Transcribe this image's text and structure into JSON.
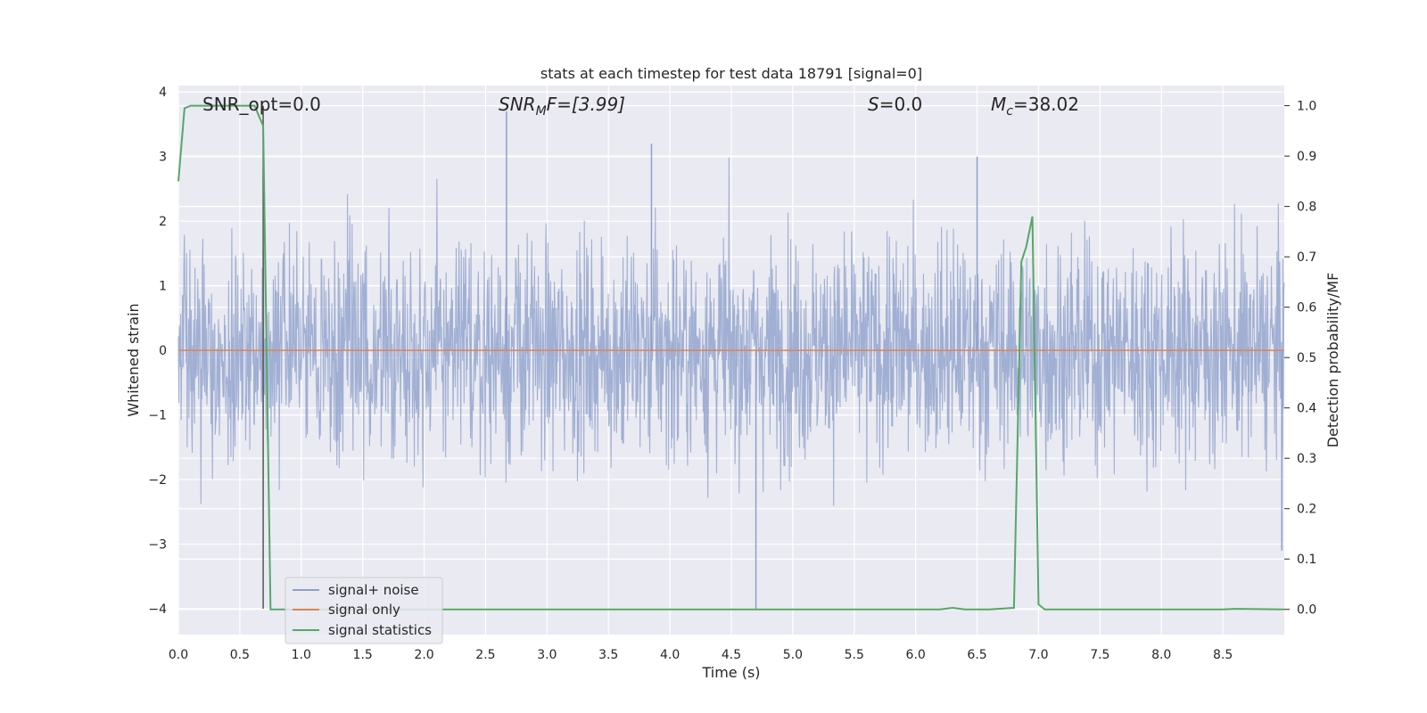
{
  "chart_data": {
    "type": "line",
    "title": "stats at each timestep for test data 18791 [signal=0]",
    "xlabel": "Time (s)",
    "ylabel_left": "Whitened strain",
    "ylabel_right": "Detection probability/MF",
    "xlim": [
      0.0,
      9.0
    ],
    "ylim_left": [
      -4.4,
      4.1
    ],
    "ylim_right": [
      -0.05,
      1.04
    ],
    "x_ticks": [
      "0.0",
      "0.5",
      "1.0",
      "1.5",
      "2.0",
      "2.5",
      "3.0",
      "3.5",
      "4.0",
      "4.5",
      "5.0",
      "5.5",
      "6.0",
      "6.5",
      "7.0",
      "7.5",
      "8.0",
      "8.5"
    ],
    "y_ticks_left": [
      "−4",
      "−3",
      "−2",
      "−1",
      "0",
      "1",
      "2",
      "3",
      "4"
    ],
    "y_ticks_right": [
      "0.0",
      "0.1",
      "0.2",
      "0.3",
      "0.4",
      "0.5",
      "0.6",
      "0.7",
      "0.8",
      "0.9",
      "1.0"
    ],
    "grid": true,
    "legend_position": "lower-left",
    "annotations": {
      "snr_opt": "SNR_opt=0.0",
      "snr_mf_main": "SNR",
      "snr_mf_sub": "M",
      "snr_mf_rest": "F=[3.99]",
      "s_main": "S",
      "s_rest": "=0.0",
      "mc_main": "M",
      "mc_sub": "c",
      "mc_rest": "=38.02"
    },
    "vertical_marker_x": 0.69,
    "series": [
      {
        "name": "signal+ noise",
        "axis": "left",
        "color": "#8da0cb",
        "style": "dense noise",
        "time_range": [
          0.0,
          9.0
        ],
        "approx_band": [
          -1.7,
          1.7
        ],
        "notable_spikes": [
          {
            "x": 2.67,
            "y": 3.7
          },
          {
            "x": 3.85,
            "y": 3.2
          },
          {
            "x": 4.7,
            "y": -4.0
          },
          {
            "x": 6.5,
            "y": 3.0
          },
          {
            "x": 8.98,
            "y": -3.1
          }
        ]
      },
      {
        "name": "signal only",
        "axis": "left",
        "color": "#dd8452",
        "x": [
          0.0,
          9.0
        ],
        "y": [
          0.0,
          0.0
        ]
      },
      {
        "name": "signal statistics",
        "axis": "right",
        "color": "#55a868",
        "x": [
          0.0,
          0.05,
          0.1,
          0.2,
          0.3,
          0.4,
          0.5,
          0.6,
          0.62,
          0.69,
          0.75,
          0.8,
          1.0,
          2.0,
          3.0,
          4.0,
          5.0,
          6.0,
          6.2,
          6.3,
          6.4,
          6.6,
          6.8,
          6.86,
          6.9,
          6.95,
          7.0,
          7.05,
          7.5,
          8.0,
          8.5,
          8.6,
          9.0
        ],
        "y": [
          0.85,
          0.995,
          1.0,
          1.0,
          1.0,
          1.0,
          1.0,
          1.0,
          1.0,
          0.96,
          0.0,
          0.0,
          0.0,
          0.0,
          0.0,
          0.0,
          0.0,
          0.0,
          0.0,
          0.003,
          0.0,
          0.0,
          0.003,
          0.69,
          0.72,
          0.78,
          0.01,
          0.0,
          0.0,
          0.0,
          0.0,
          0.001,
          0.0
        ]
      }
    ]
  }
}
